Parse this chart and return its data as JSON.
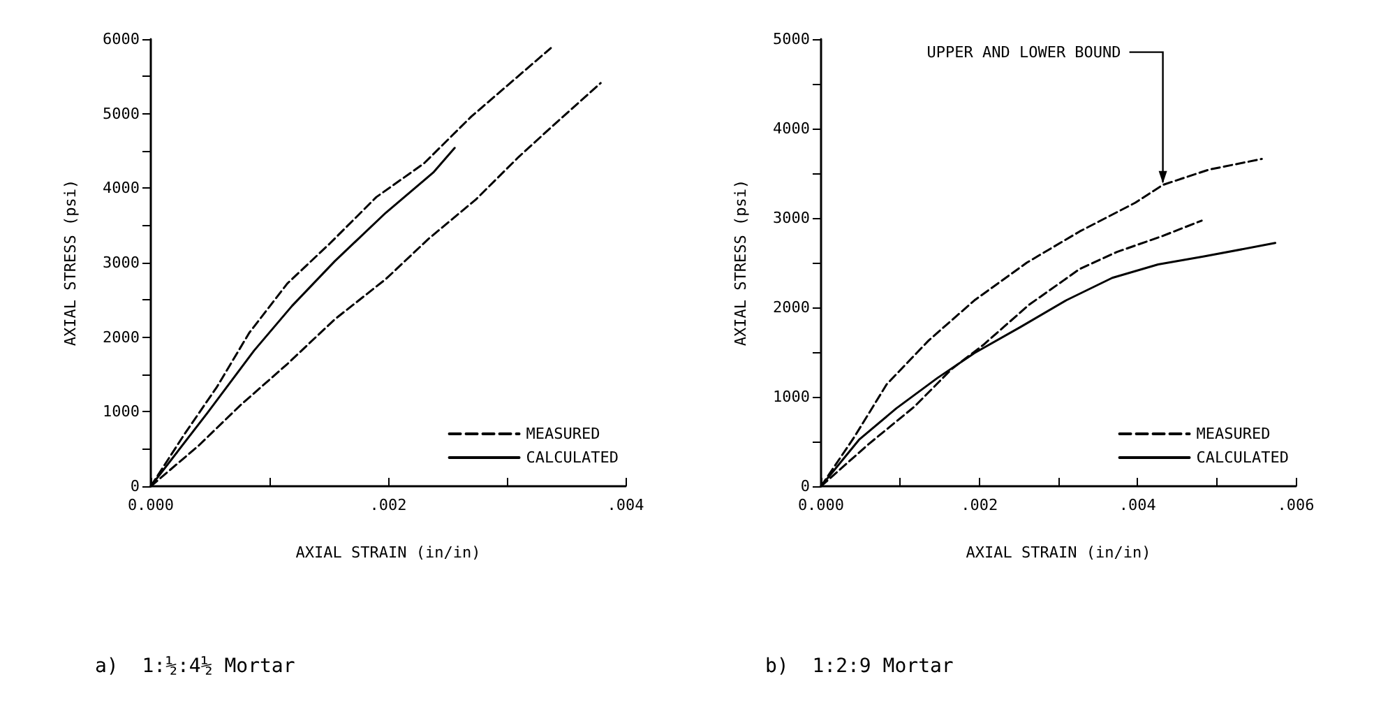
{
  "chart_data": [
    {
      "type": "line",
      "xlabel": "AXIAL STRAIN (in/in)",
      "ylabel": "AXIAL STRESS (psi)",
      "xlim": [
        0,
        0.004
      ],
      "ylim": [
        0,
        6000
      ],
      "xticks": [
        {
          "value": 0,
          "label": "0.000"
        },
        {
          "value": 0.001,
          "label": null
        },
        {
          "value": 0.002,
          "label": ".002"
        },
        {
          "value": 0.003,
          "label": null
        },
        {
          "value": 0.004,
          "label": ".004"
        }
      ],
      "yticks": [
        0,
        {
          "value": 500,
          "label": null
        },
        1000,
        {
          "value": 1500,
          "label": null
        },
        2000,
        {
          "value": 2500,
          "label": null
        },
        3000,
        {
          "value": 3500,
          "label": null
        },
        4000,
        {
          "value": 4500,
          "label": null
        },
        5000,
        {
          "value": 5500,
          "label": null
        },
        6000
      ],
      "legend": "bottom right",
      "grid": false,
      "marker": "none",
      "series": [
        {
          "name": "MEASURED",
          "color": "#000000",
          "line_style": "dashed",
          "x": [
            0,
            0.00028,
            0.00056,
            0.00083,
            0.00115,
            0.00151,
            0.0019,
            0.0023,
            0.0027,
            0.00337
          ],
          "values": [
            0,
            690,
            1340,
            2060,
            2720,
            3260,
            3880,
            4330,
            4960,
            5880
          ]
        },
        {
          "name": "CALCULATED",
          "color": "#000000",
          "line_style": "solid",
          "x": [
            0,
            0.00048,
            0.00087,
            0.00119,
            0.00155,
            0.00198,
            0.00238,
            0.00256
          ],
          "values": [
            0,
            990,
            1820,
            2420,
            3020,
            3670,
            4210,
            4540
          ]
        },
        {
          "color": "#000000",
          "line_style": "dashed",
          "x": [
            0,
            0.0004,
            0.00075,
            0.00115,
            0.00155,
            0.00198,
            0.00234,
            0.00274,
            0.0031,
            0.00341,
            0.00379
          ],
          "values": [
            0,
            540,
            1080,
            1640,
            2240,
            2780,
            3320,
            3850,
            4420,
            4870,
            5410
          ]
        }
      ],
      "annotations": [
        "a)  1:½:4½ Mortar"
      ]
    },
    {
      "type": "line",
      "xlabel": "AXIAL STRAIN (in/in)",
      "ylabel": "AXIAL STRESS (psi)",
      "xlim": [
        0,
        0.006
      ],
      "ylim": [
        0,
        5000
      ],
      "xticks": [
        {
          "value": 0,
          "label": "0.000"
        },
        {
          "value": 0.001,
          "label": null
        },
        {
          "value": 0.002,
          "label": ".002"
        },
        {
          "value": 0.003,
          "label": null
        },
        {
          "value": 0.004,
          "label": ".004"
        },
        {
          "value": 0.005,
          "label": null
        },
        {
          "value": 0.006,
          "label": ".006"
        }
      ],
      "yticks": [
        0,
        {
          "value": 500,
          "label": null
        },
        1000,
        {
          "value": 1500,
          "label": null
        },
        2000,
        {
          "value": 2500,
          "label": null
        },
        3000,
        {
          "value": 3500,
          "label": null
        },
        4000,
        {
          "value": 4500,
          "label": null
        },
        5000
      ],
      "legend": "bottom right",
      "grid": false,
      "marker": "none",
      "series": [
        {
          "name": "MEASURED",
          "color": "#000000",
          "line_style": "dashed",
          "x": [
            0,
            0.00042,
            0.00083,
            0.00136,
            0.00194,
            0.0026,
            0.00327,
            0.00397,
            0.00432,
            0.0049,
            0.00557
          ],
          "values": [
            0,
            550,
            1140,
            1630,
            2080,
            2500,
            2850,
            3170,
            3370,
            3540,
            3660
          ]
        },
        {
          "name": "CALCULATED",
          "color": "#000000",
          "line_style": "solid",
          "x": [
            0,
            0.00048,
            0.00095,
            0.00147,
            0.00194,
            0.00252,
            0.0031,
            0.00368,
            0.00426,
            0.00484,
            0.00574
          ],
          "values": [
            0,
            520,
            870,
            1210,
            1490,
            1780,
            2080,
            2330,
            2480,
            2570,
            2720
          ]
        },
        {
          "color": "#000000",
          "line_style": "dashed",
          "x": [
            0,
            0.0006,
            0.00118,
            0.00165,
            0.00205,
            0.00263,
            0.00327,
            0.00374,
            0.00432,
            0.00481
          ],
          "values": [
            0,
            470,
            890,
            1310,
            1580,
            2030,
            2430,
            2620,
            2800,
            2970
          ]
        }
      ],
      "annotations": [
        {
          "text": "UPPER AND LOWER BOUND",
          "x": 0.00432,
          "y": 3370
        },
        "b)  1:2:9 Mortar"
      ]
    }
  ]
}
